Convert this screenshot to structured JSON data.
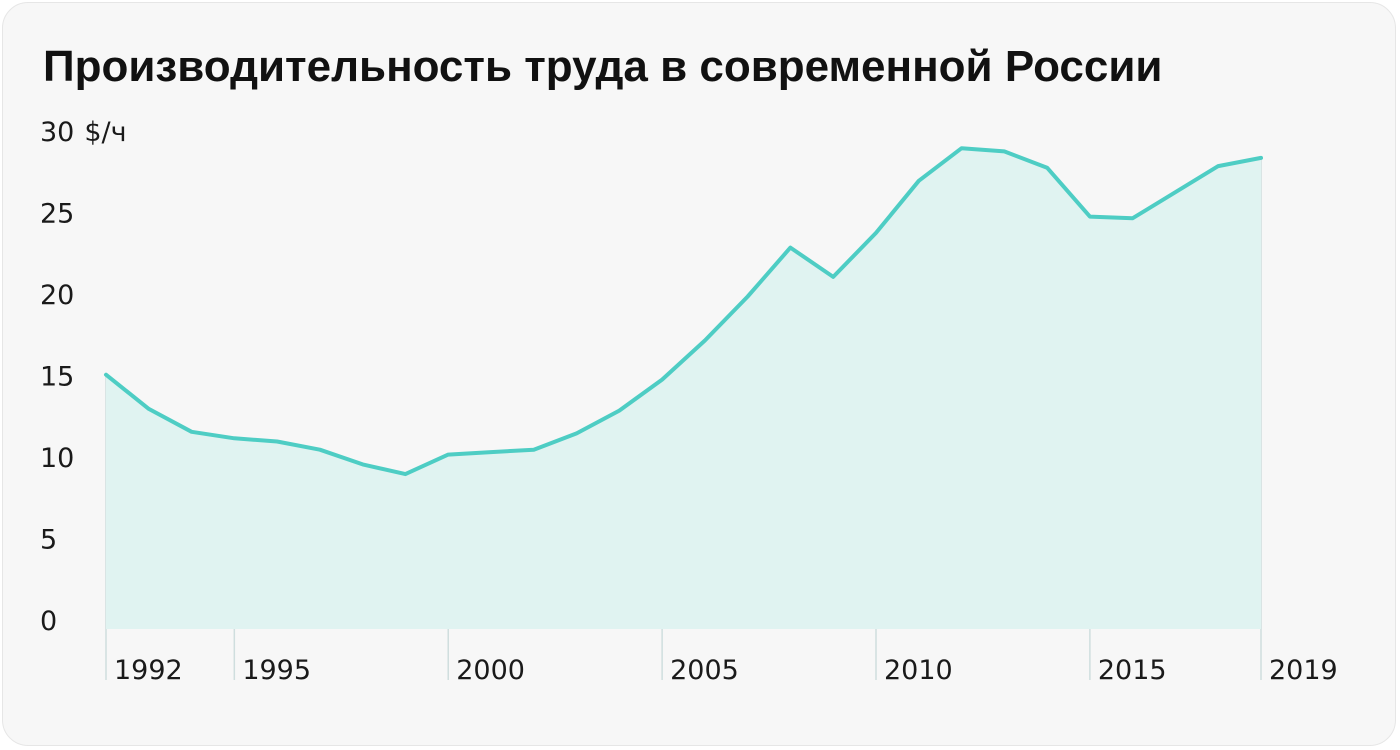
{
  "chart_data": {
    "type": "area",
    "title": "Производительность труда в современной России",
    "ylabel": "",
    "y_unit": "$/ч",
    "xlabel": "",
    "ylim": [
      0,
      30
    ],
    "xlim": [
      1992,
      2019
    ],
    "y_ticks": [
      0,
      5,
      10,
      15,
      20,
      25,
      30
    ],
    "y_tick_labels": [
      "0",
      "5",
      "10",
      "15",
      "20",
      "25",
      "30"
    ],
    "x_ticks": [
      1992,
      1995,
      2000,
      2005,
      2010,
      2015,
      2019
    ],
    "x_tick_labels": [
      "1992",
      "1995",
      "2000",
      "2005",
      "2010",
      "2015",
      "2019"
    ],
    "grid": false,
    "legend": "none",
    "colors": {
      "line": "#4ecdc4",
      "fill": "#e0f3f1",
      "guide": "#cfdede",
      "card_bg": "#f7f7f7"
    },
    "series": [
      {
        "x": [
          1992,
          1993,
          1994,
          1995,
          1996,
          1997,
          1998,
          1999,
          2000,
          2001,
          2002,
          2003,
          2004,
          2005,
          2006,
          2007,
          2008,
          2009,
          2010,
          2011,
          2012,
          2013,
          2014,
          2015,
          2016,
          2017,
          2018,
          2019
        ],
        "values": [
          15.6,
          13.5,
          12.1,
          11.7,
          11.5,
          11.0,
          10.1,
          9.5,
          10.7,
          10.85,
          11.0,
          12.0,
          13.4,
          15.3,
          17.7,
          20.4,
          23.4,
          21.6,
          24.3,
          27.5,
          29.5,
          29.3,
          28.3,
          25.3,
          25.2,
          26.8,
          28.4,
          28.9
        ]
      }
    ]
  }
}
